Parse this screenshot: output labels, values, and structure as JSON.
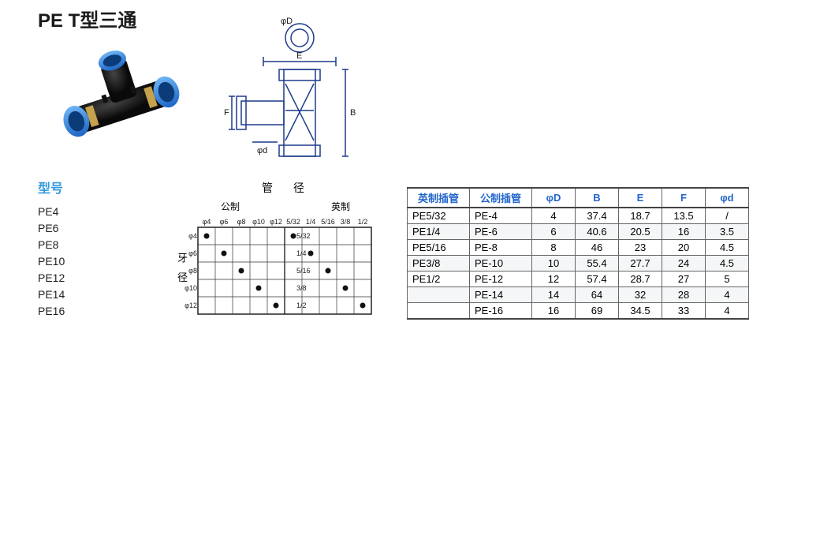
{
  "title": "PE T型三通",
  "model_label": "型号",
  "models": [
    "PE4",
    "PE6",
    "PE8",
    "PE10",
    "PE12",
    "PE14",
    "PE16"
  ],
  "colors": {
    "blue": "#2e6fd8",
    "black": "#1a1a1a",
    "link": "#3399dd",
    "grid": "#444444",
    "zebra": "#f3f4f5"
  },
  "grid_chart": {
    "title": "管　径",
    "sub_left": "公制",
    "sub_right": "英制",
    "side_label": "牙 径",
    "cols_left": [
      "φ4",
      "φ6",
      "φ8",
      "φ10",
      "φ12"
    ],
    "cols_right": [
      "5/32",
      "1/4",
      "5/16",
      "3/8",
      "1/2"
    ],
    "rows": [
      "φ4",
      "φ6",
      "φ8",
      "φ10",
      "φ12"
    ],
    "rows_right": [
      "5/32",
      "1/4",
      "5/16",
      "3/8",
      "1/2"
    ],
    "dots": [
      {
        "r": 0,
        "c": 0
      },
      {
        "r": 1,
        "c": 1
      },
      {
        "r": 2,
        "c": 2
      },
      {
        "r": 3,
        "c": 3
      },
      {
        "r": 4,
        "c": 4
      },
      {
        "r": 0,
        "c": 5
      },
      {
        "r": 1,
        "c": 6
      },
      {
        "r": 2,
        "c": 7
      },
      {
        "r": 3,
        "c": 8
      },
      {
        "r": 4,
        "c": 9
      }
    ]
  },
  "diagram_labels": {
    "D": "φD",
    "E": "E",
    "F": "F",
    "B": "B",
    "d": "φd"
  },
  "spec_table": {
    "headers": [
      "英制插管",
      "公制插管",
      "φD",
      "B",
      "E",
      "F",
      "φd"
    ],
    "rows": [
      [
        "PE5/32",
        "PE-4",
        "4",
        "37.4",
        "18.7",
        "13.5",
        "/"
      ],
      [
        "PE1/4",
        "PE-6",
        "6",
        "40.6",
        "20.5",
        "16",
        "3.5"
      ],
      [
        "PE5/16",
        "PE-8",
        "8",
        "46",
        "23",
        "20",
        "4.5"
      ],
      [
        "PE3/8",
        "PE-10",
        "10",
        "55.4",
        "27.7",
        "24",
        "4.5"
      ],
      [
        "PE1/2",
        "PE-12",
        "12",
        "57.4",
        "28.7",
        "27",
        "5"
      ],
      [
        "",
        "PE-14",
        "14",
        "64",
        "32",
        "28",
        "4"
      ],
      [
        "",
        "PE-16",
        "16",
        "69",
        "34.5",
        "33",
        "4"
      ]
    ]
  }
}
